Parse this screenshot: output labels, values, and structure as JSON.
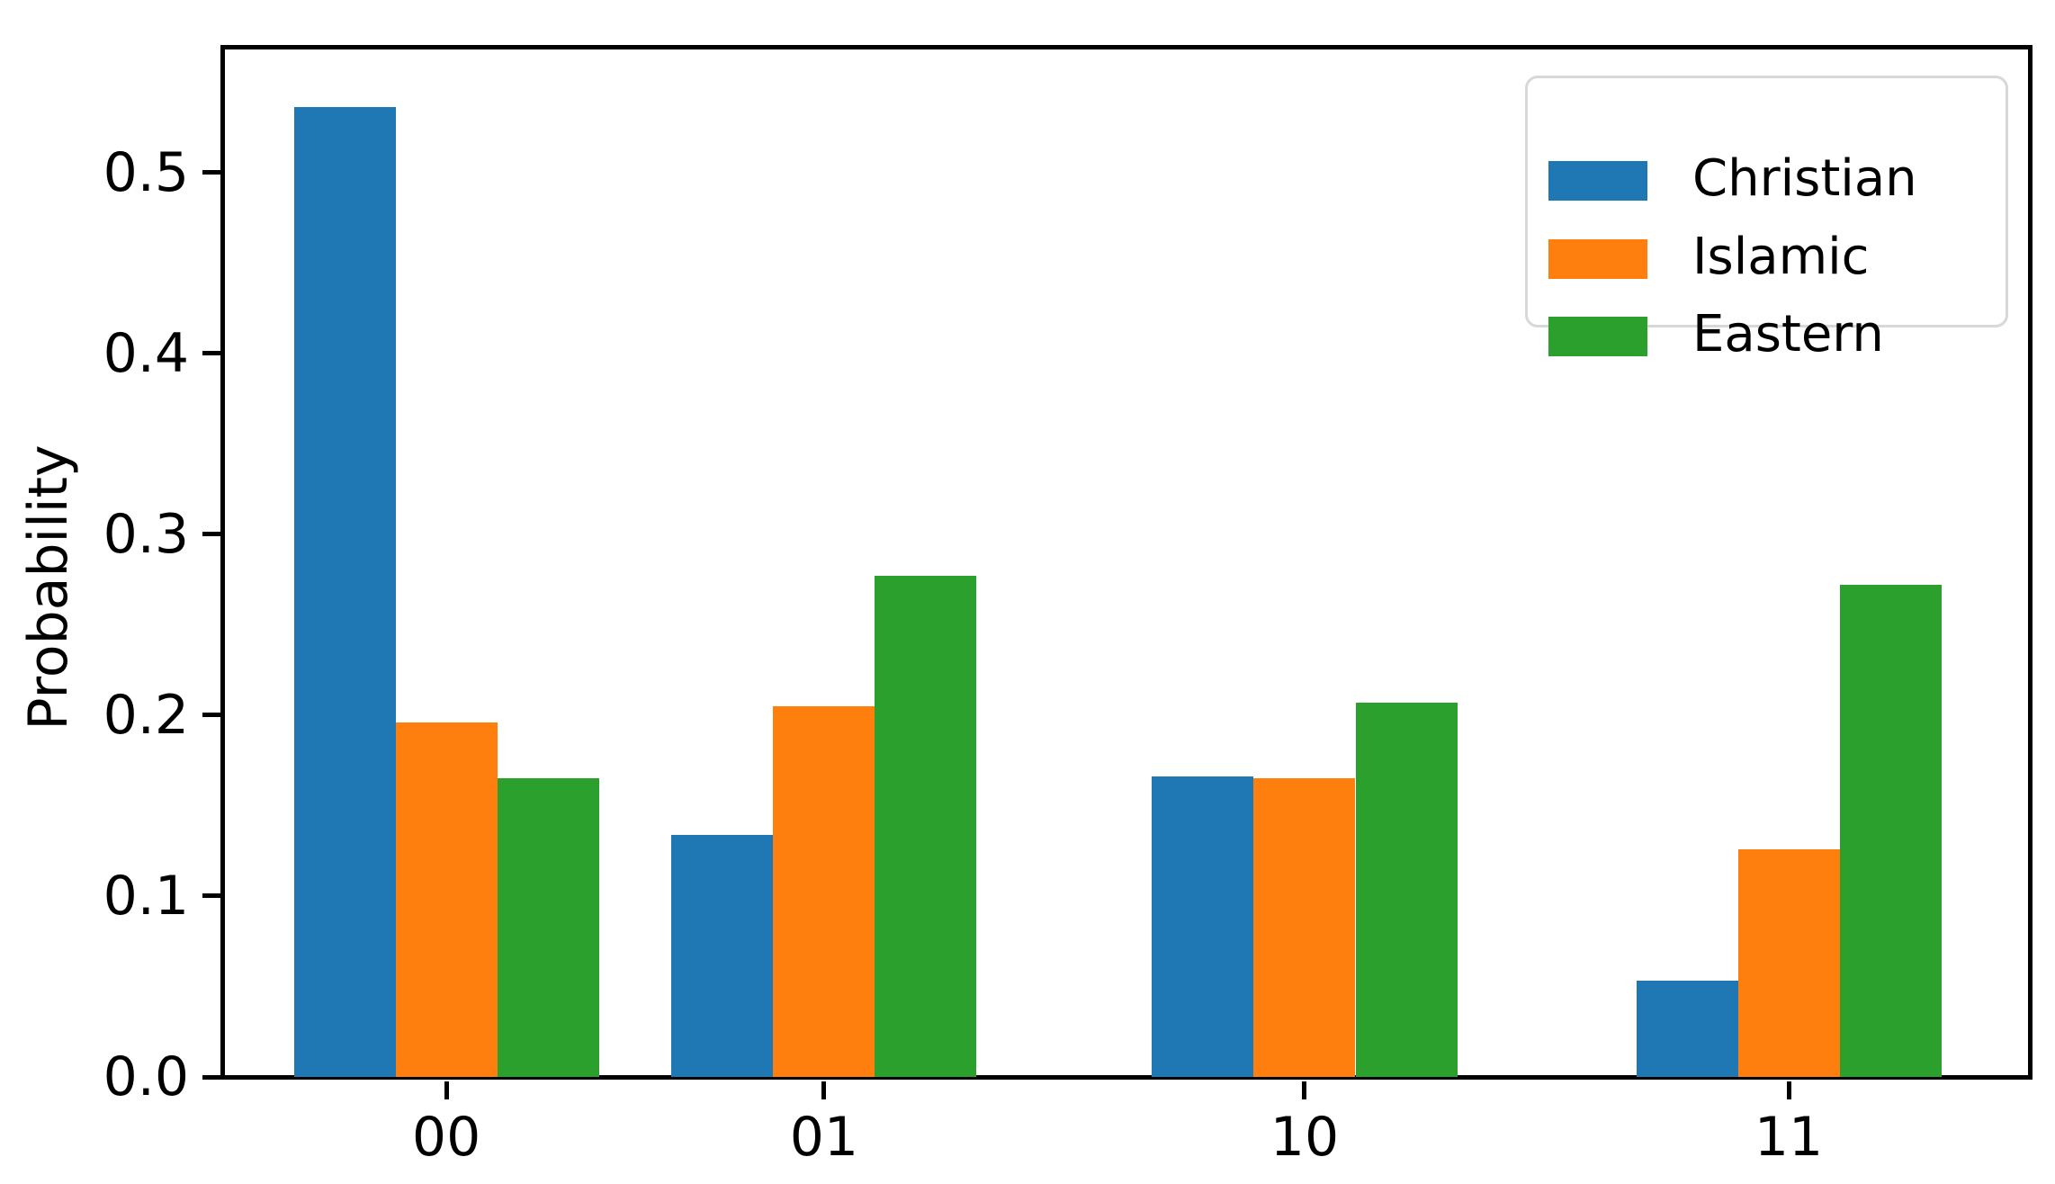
{
  "figure": {
    "background": "#ffffff"
  },
  "chart_data": {
    "type": "bar",
    "title": "",
    "xlabel": "",
    "ylabel": "Probability",
    "categories": [
      "00",
      "01",
      "10",
      "11"
    ],
    "series": [
      {
        "name": "Christian",
        "color": "#1f77b4",
        "values": [
          0.536,
          0.134,
          0.166,
          0.053
        ]
      },
      {
        "name": "Islamic",
        "color": "#ff7f0e",
        "values": [
          0.196,
          0.205,
          0.165,
          0.126
        ]
      },
      {
        "name": "Eastern",
        "color": "#2ca02c",
        "values": [
          0.165,
          0.277,
          0.207,
          0.272
        ]
      }
    ],
    "ylim": [
      0,
      0.568
    ],
    "yticks": [
      0.0,
      0.1,
      0.2,
      0.3,
      0.4,
      0.5
    ],
    "ytick_labels": [
      "0.0",
      "0.1",
      "0.2",
      "0.3",
      "0.4",
      "0.5"
    ],
    "grid": false,
    "legend_position": "upper right",
    "group_center_fractions": [
      0.1228,
      0.3323,
      0.5988,
      0.8673
    ],
    "bar_width_fraction": 0.0564
  },
  "legend": {
    "items": [
      {
        "label": "Christian",
        "color": "#1f77b4"
      },
      {
        "label": "Islamic",
        "color": "#ff7f0e"
      },
      {
        "label": "Eastern",
        "color": "#2ca02c"
      }
    ]
  }
}
